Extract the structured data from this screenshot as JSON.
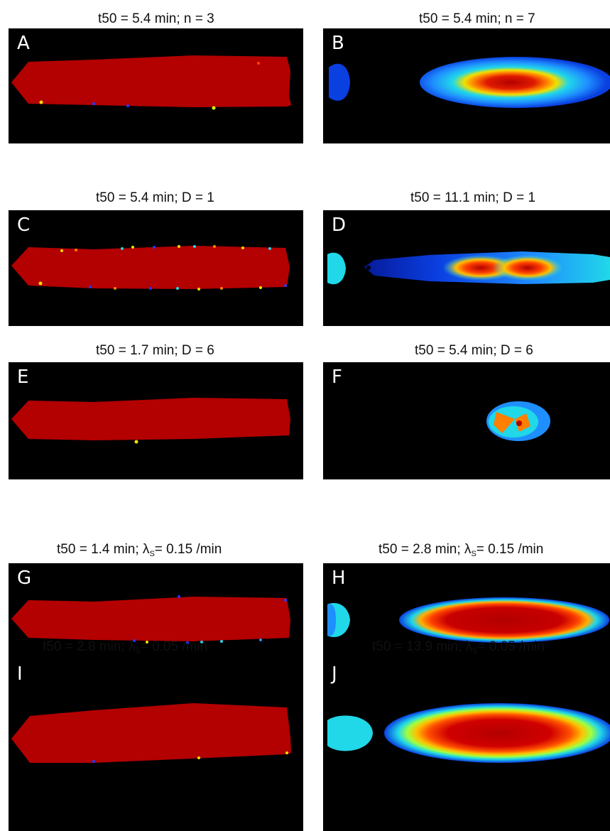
{
  "panels": [
    {
      "id": "A",
      "label": "A",
      "title_pre": "t50 = 5.4 min; n = 3",
      "title_sub": "",
      "title_post": ""
    },
    {
      "id": "B",
      "label": "B",
      "title_pre": "t50 = 5.4 min; n = 7",
      "title_sub": "",
      "title_post": ""
    },
    {
      "id": "C",
      "label": "C",
      "title_pre": "t50 = 5.4 min; D = 1",
      "title_sub": "",
      "title_post": ""
    },
    {
      "id": "D",
      "label": "D",
      "title_pre": "t50 = 11.1 min; D = 1",
      "title_sub": "",
      "title_post": ""
    },
    {
      "id": "E",
      "label": "E",
      "title_pre": "t50 = 1.7 min; D = 6",
      "title_sub": "",
      "title_post": ""
    },
    {
      "id": "F",
      "label": "F",
      "title_pre": "t50 = 5.4 min; D = 6",
      "title_sub": "",
      "title_post": ""
    },
    {
      "id": "G",
      "label": "G",
      "title_pre": "t50 = 1.4 min; λ",
      "title_sub": "S",
      "title_post": "= 0.15 /min"
    },
    {
      "id": "H",
      "label": "H",
      "title_pre": "t50 = 2.8 min; λ",
      "title_sub": "S",
      "title_post": "= 0.15 /min"
    },
    {
      "id": "I",
      "label": "I",
      "title_pre": "t50 = 2.8 min; λ",
      "title_sub": "S",
      "title_post": "= 0.05 /min"
    },
    {
      "id": "J",
      "label": "J",
      "title_pre": "t50 = 13.9 min; λ",
      "title_sub": "S",
      "title_post": "= 0.05 /min"
    }
  ],
  "colors": {
    "background": "#000000",
    "red": "#b30000",
    "dark_red": "#a80000",
    "orange": "#ff7f00",
    "yellow": "#f5e000",
    "cyan": "#1fd8e8",
    "light_blue": "#1f8fff",
    "blue": "#0a3fe0",
    "dark_blue": "#061a9a"
  }
}
